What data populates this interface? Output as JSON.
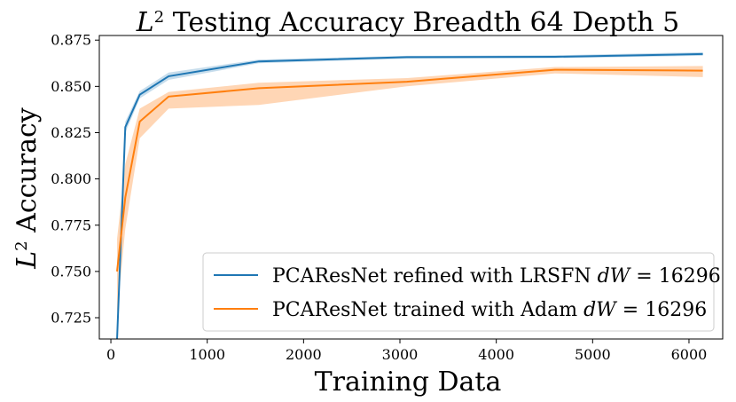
{
  "chart_data": {
    "type": "line",
    "title": "L² Testing Accuracy Breadth 64 Depth 5",
    "xlabel": "Training Data",
    "ylabel": "L² Accuracy",
    "xlim": [
      -120,
      6350
    ],
    "ylim": [
      0.7135,
      0.8775
    ],
    "xticks": [
      0,
      1000,
      2000,
      3000,
      4000,
      5000,
      6000
    ],
    "yticks": [
      0.725,
      0.75,
      0.775,
      0.8,
      0.825,
      0.85,
      0.875
    ],
    "xtick_labels": [
      "0",
      "1000",
      "2000",
      "3000",
      "4000",
      "5000",
      "6000"
    ],
    "ytick_labels": [
      "0.725",
      "0.750",
      "0.775",
      "0.800",
      "0.825",
      "0.850",
      "0.875"
    ],
    "grid": false,
    "legend_position": "lower-right",
    "series": [
      {
        "name": "PCAResNet refined with LRSFN dW = 16296",
        "legend_prefix": "PCAResNet refined with LRSFN ",
        "legend_math": "dW",
        "legend_suffix": " = 16296",
        "color": "#1f77b4",
        "x": [
          64,
          150,
          300,
          600,
          1536,
          3072,
          4608,
          6144
        ],
        "y": [
          0.713,
          0.828,
          0.8455,
          0.8555,
          0.8635,
          0.8658,
          0.866,
          0.8675
        ],
        "lower": [
          0.713,
          0.825,
          0.8435,
          0.8535,
          0.8625,
          0.865,
          0.8652,
          0.8665
        ],
        "upper": [
          0.713,
          0.831,
          0.8475,
          0.8575,
          0.8645,
          0.8665,
          0.8668,
          0.8685
        ]
      },
      {
        "name": "PCAResNet trained with Adam dW = 16296",
        "legend_prefix": "PCAResNet trained with Adam ",
        "legend_math": "dW",
        "legend_suffix": " = 16296",
        "color": "#ff7f0e",
        "band_color": "#ffcfa8",
        "x": [
          64,
          150,
          300,
          600,
          1536,
          3072,
          4608,
          6144
        ],
        "y": [
          0.75,
          0.79,
          0.831,
          0.8445,
          0.849,
          0.8525,
          0.859,
          0.8585
        ],
        "lower": [
          0.727,
          0.773,
          0.822,
          0.838,
          0.84,
          0.85,
          0.857,
          0.855
        ],
        "upper": [
          0.7675,
          0.808,
          0.838,
          0.847,
          0.852,
          0.8545,
          0.8605,
          0.861
        ]
      }
    ]
  }
}
